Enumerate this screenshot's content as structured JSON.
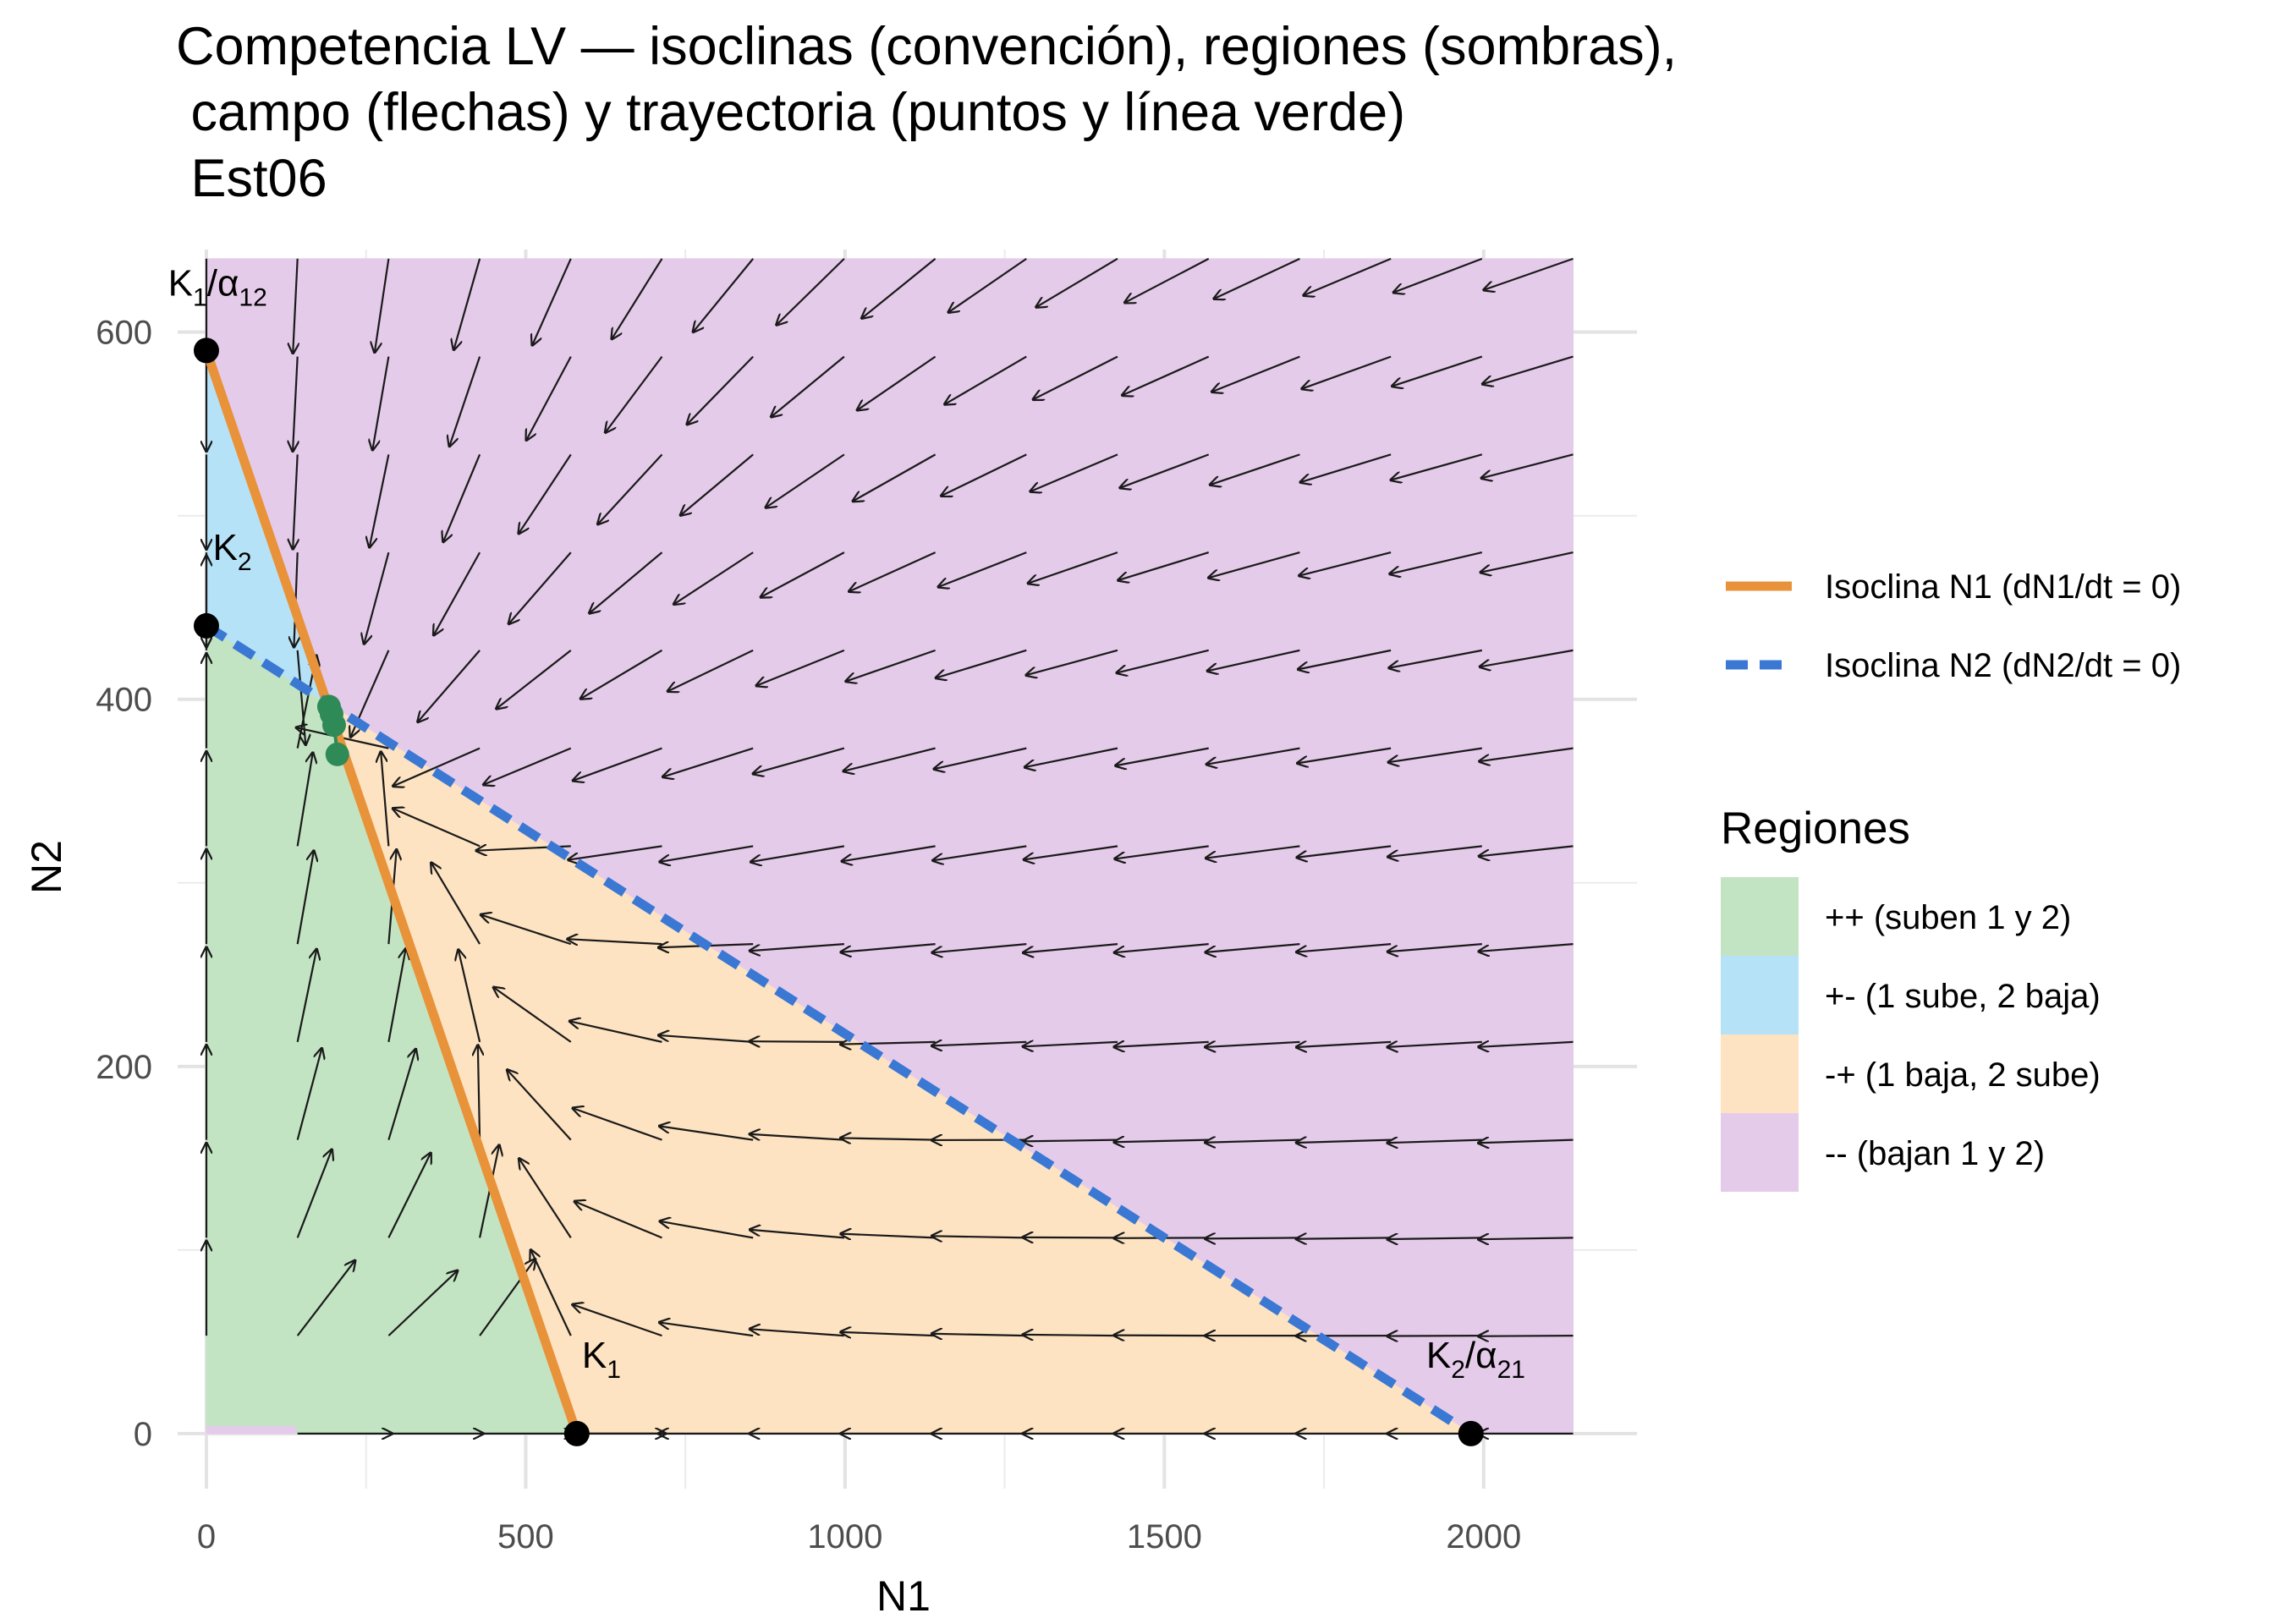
{
  "chart_data": {
    "type": "line",
    "title": {
      "line1": "Competencia LV — isoclinas (convención), regiones (sombras),",
      "line2": " campo (flechas) y trayectoria (puntos y línea verde)",
      "line3": " Est06"
    },
    "xlabel": "N1",
    "ylabel": "N2",
    "xlim": [
      -45,
      2240
    ],
    "ylim": [
      -30,
      645
    ],
    "x_ticks": [
      0,
      500,
      1000,
      1500,
      2000
    ],
    "y_ticks": [
      0,
      200,
      400,
      600
    ],
    "grid": true,
    "parameters": {
      "K1": 580,
      "K2": 440,
      "alpha12": 0.983,
      "alpha21": 0.2222
    },
    "field_extent": {
      "x": [
        0,
        2140
      ],
      "y": [
        0,
        640
      ]
    },
    "series": [
      {
        "name": "Isoclina N1 (dN1/dt = 0)",
        "color": "#E8923A",
        "style": "solid",
        "x": [
          0,
          580
        ],
        "y": [
          590,
          0
        ]
      },
      {
        "name": "Isoclina N2 (dN2/dt = 0)",
        "color": "#3A78D4",
        "style": "dashed",
        "x": [
          0,
          1980
        ],
        "y": [
          440,
          0
        ]
      }
    ],
    "trajectory": {
      "color": "#2E8B57",
      "points": [
        [
          192,
          396
        ],
        [
          196,
          392
        ],
        [
          200,
          386
        ],
        [
          205,
          370
        ]
      ]
    },
    "equilibria": [
      {
        "label": "K1/α12",
        "main": "K",
        "sub1": "1",
        "sep": "/α",
        "sub2": "12",
        "x": 0,
        "y": 590,
        "lx": -60,
        "ly": 620
      },
      {
        "label": "K2",
        "main": "K",
        "sub1": "2",
        "sep": "",
        "sub2": "",
        "x": 0,
        "y": 440,
        "lx": 10,
        "ly": 476
      },
      {
        "label": "K1",
        "main": "K",
        "sub1": "1",
        "sep": "",
        "sub2": "",
        "x": 580,
        "y": 0,
        "lx": 588,
        "ly": 36
      },
      {
        "label": "K2/α21",
        "main": "K",
        "sub1": "2",
        "sep": "/α",
        "sub2": "21",
        "x": 1980,
        "y": 0,
        "lx": 1910,
        "ly": 36
      }
    ],
    "legend": {
      "placement": "right",
      "lines": [
        {
          "label": "Isoclina N1 (dN1/dt = 0)",
          "color": "#E8923A",
          "style": "solid"
        },
        {
          "label": "Isoclina N2 (dN2/dt = 0)",
          "color": "#3A78D4",
          "style": "dashed"
        }
      ],
      "regions_title": "Regiones",
      "regions": [
        {
          "key": "pp",
          "label": "++ (suben 1 y 2)",
          "color": "#C3E4C3"
        },
        {
          "key": "pm",
          "label": "+- (1 sube, 2 baja)",
          "color": "#B6E2F7"
        },
        {
          "key": "mp",
          "label": "-+ (1 baja, 2 sube)",
          "color": "#FDE3C1"
        },
        {
          "key": "mm",
          "label": "-- (bajan 1 y 2)",
          "color": "#E5CBEA"
        }
      ]
    }
  }
}
